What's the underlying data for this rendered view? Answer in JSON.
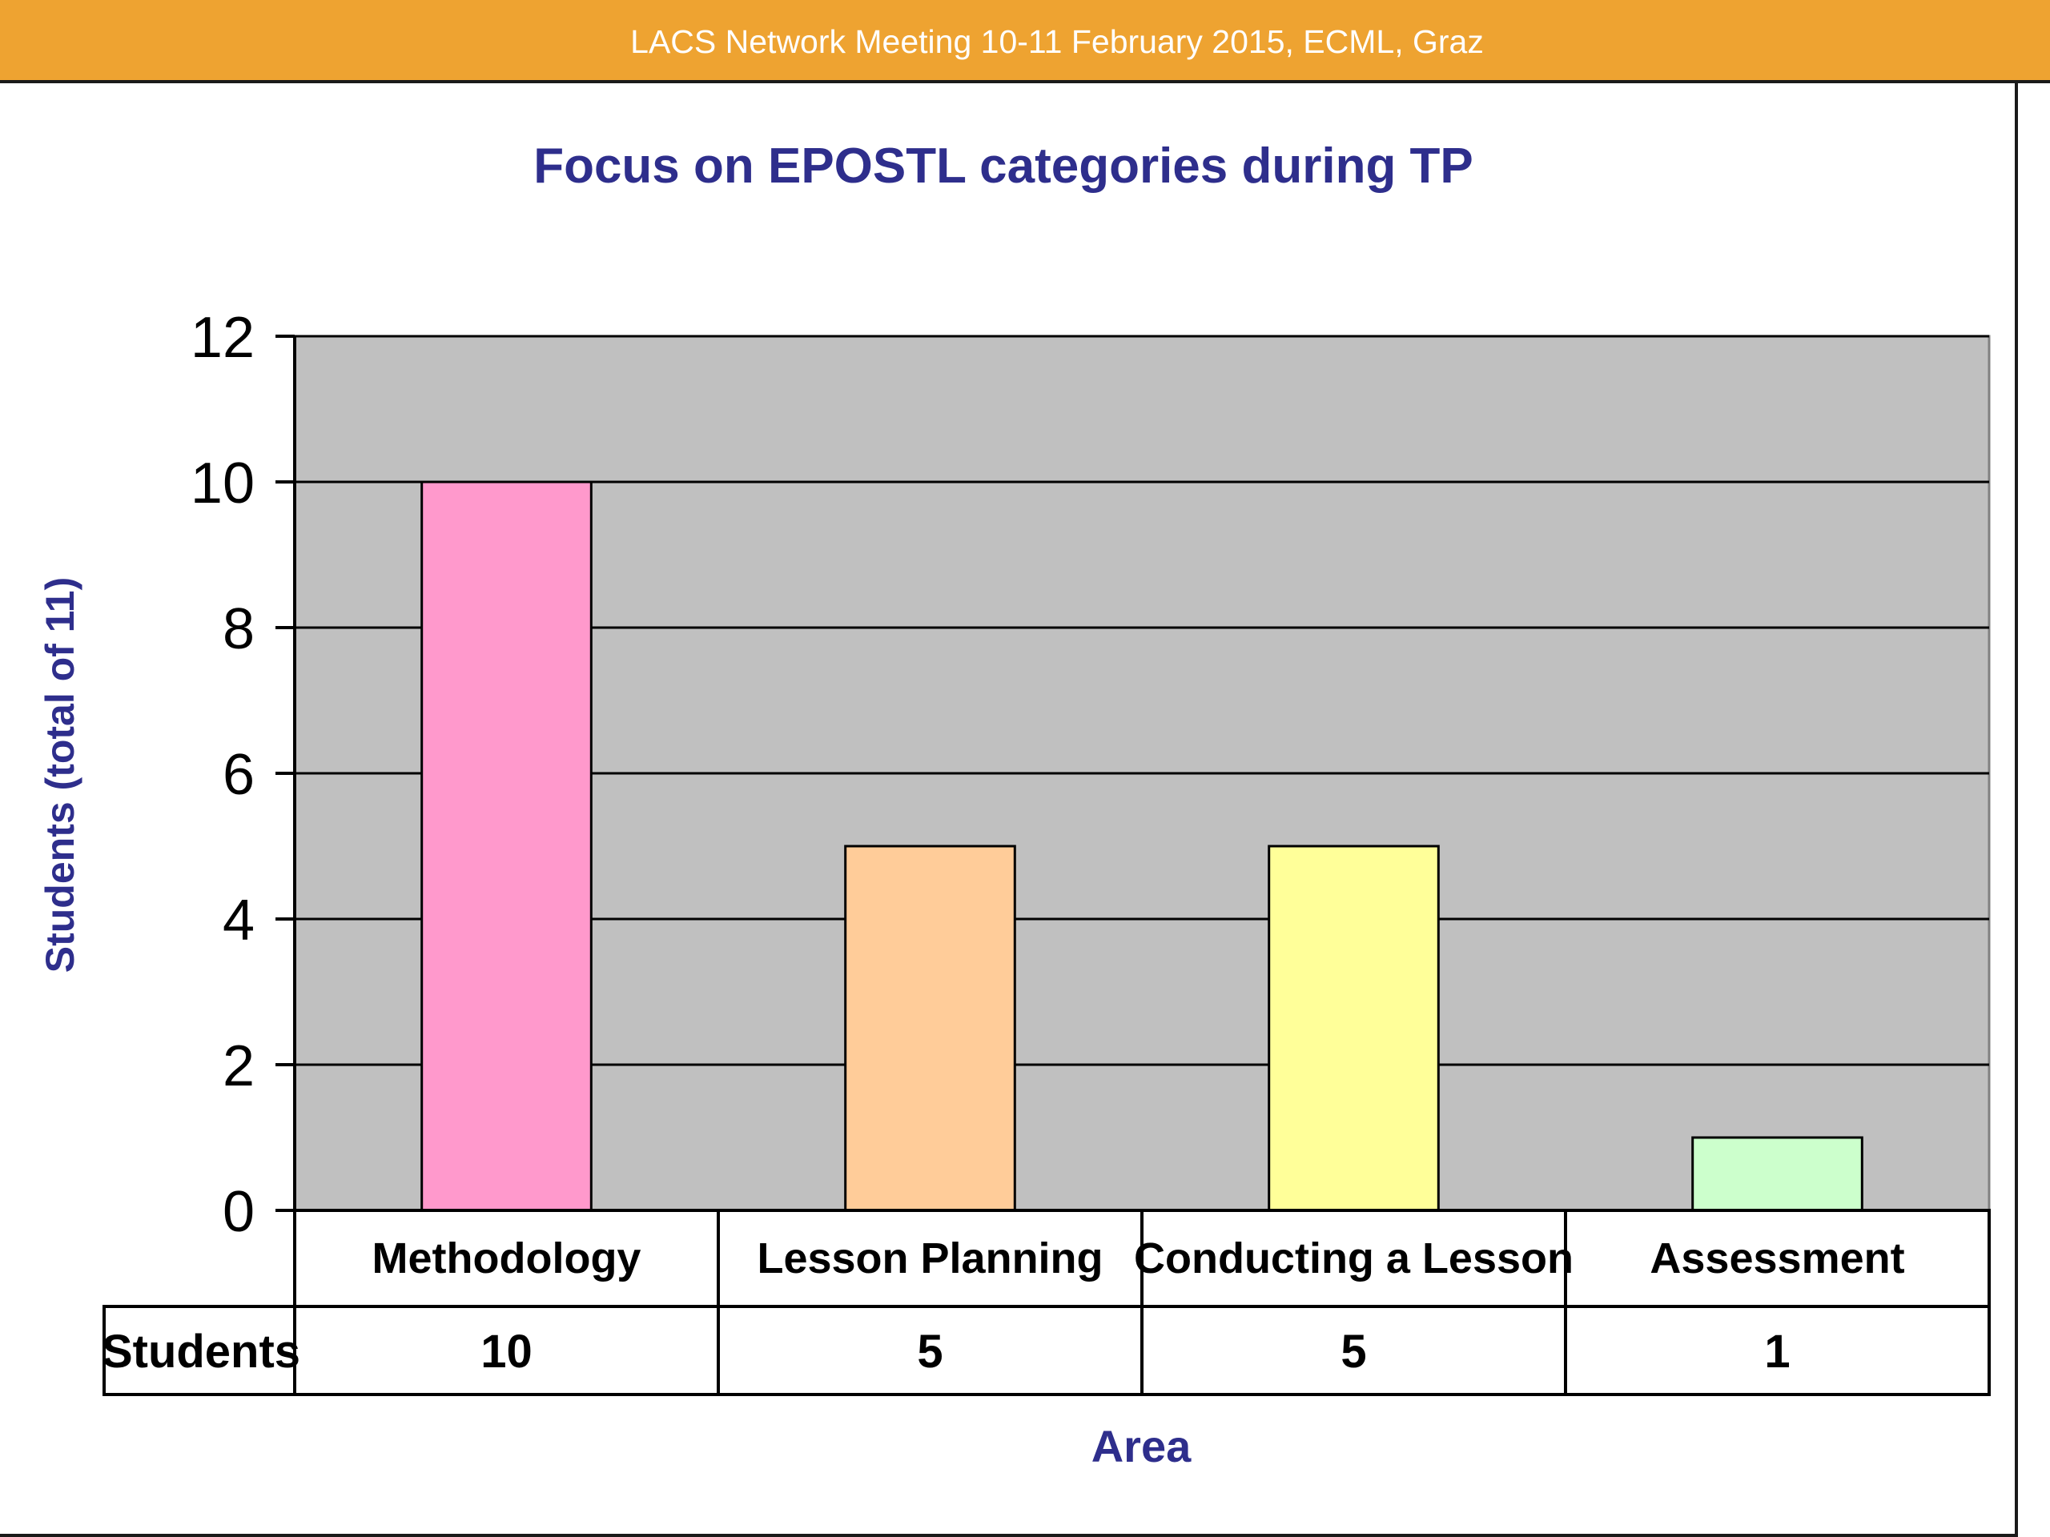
{
  "header": {
    "text": "LACS Network Meeting 10-11 February 2015, ECML, Graz",
    "color": "#eea331"
  },
  "chart_data": {
    "type": "bar",
    "title": "Focus on EPOSTL categories during TP",
    "xlabel": "Area",
    "ylabel": "Students (total of 11)",
    "categories": [
      "Methodology",
      "Lesson Planning",
      "Conducting a Lesson",
      "Assessment"
    ],
    "series": [
      {
        "name": "Students",
        "values": [
          10,
          5,
          5,
          1
        ]
      }
    ],
    "bar_colors": [
      "#ff99cc",
      "#ffcc99",
      "#ffff99",
      "#ccffcc"
    ],
    "ylim": [
      0,
      12
    ],
    "yticks": [
      0,
      2,
      4,
      6,
      8,
      10,
      12
    ],
    "grid": true,
    "plot_background": "#c0c0c0",
    "data_table": {
      "row_label": "Students",
      "values": [
        "10",
        "5",
        "5",
        "1"
      ]
    }
  }
}
